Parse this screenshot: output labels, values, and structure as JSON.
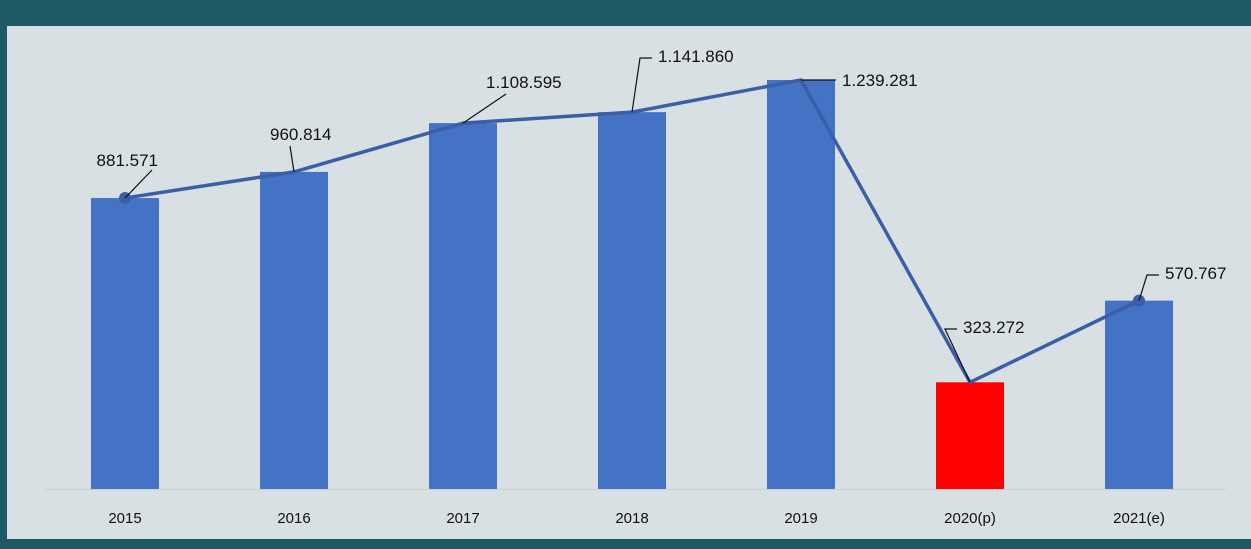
{
  "colors": {
    "background": "#d8e0e4",
    "frame": "#1e5a66",
    "bar": "#4472c4",
    "bar_highlight": "#ff0000",
    "line": "#3b5ea8"
  },
  "chart_data": {
    "type": "bar",
    "title": "",
    "xlabel": "",
    "ylabel": "",
    "categories": [
      "2015",
      "2016",
      "2017",
      "2018",
      "2019",
      "2020(p)",
      "2021(e)"
    ],
    "values": [
      881571,
      960814,
      1108595,
      1141860,
      1239281,
      323272,
      570767
    ],
    "value_labels": [
      "881.571",
      "960.814",
      "1.108.595",
      "1.141.860",
      "1.239.281",
      "323.272",
      "570.767"
    ],
    "highlight_category": "2020(p)",
    "overlay": "line connecting bar values with leader-line labels",
    "ylim": [
      0,
      1239281
    ],
    "grid": false,
    "legend": "none"
  }
}
